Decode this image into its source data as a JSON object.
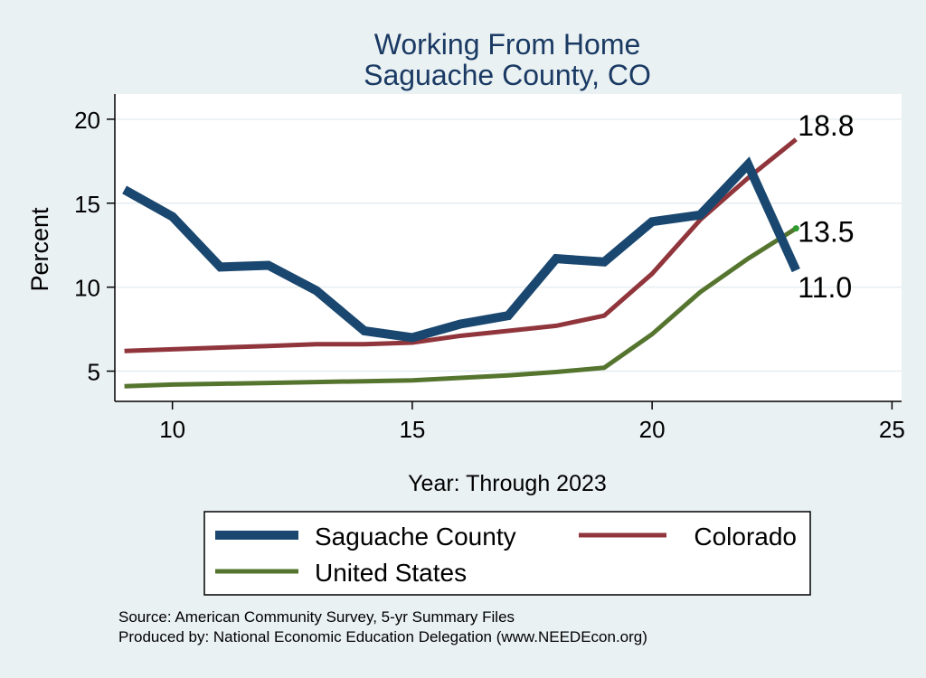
{
  "chart_data": {
    "type": "line",
    "title": "Working From Home",
    "subtitle": "Saguache County, CO",
    "xlabel": "Year: Through 2023",
    "ylabel": "Percent",
    "xlim": [
      8.8,
      25.2
    ],
    "ylim": [
      3.2,
      21.5
    ],
    "xticks": [
      10,
      15,
      20,
      25
    ],
    "yticks": [
      5,
      10,
      15,
      20
    ],
    "grid": true,
    "legend_position": "bottom",
    "x": [
      9,
      10,
      11,
      12,
      13,
      14,
      15,
      16,
      17,
      18,
      19,
      20,
      21,
      22,
      23
    ],
    "series": [
      {
        "name": "Saguache County",
        "color": "#1a476f",
        "values": [
          15.8,
          14.2,
          11.2,
          11.3,
          9.8,
          7.4,
          7.0,
          7.8,
          8.3,
          11.7,
          11.5,
          13.9,
          14.3,
          17.3,
          11.0
        ],
        "end_label": "11.0"
      },
      {
        "name": "Colorado",
        "color": "#90353b",
        "values": [
          6.2,
          6.3,
          6.4,
          6.5,
          6.6,
          6.6,
          6.7,
          7.1,
          7.4,
          7.7,
          8.3,
          10.8,
          14.0,
          16.5,
          18.8
        ],
        "end_label": "18.8"
      },
      {
        "name": "United States",
        "color": "#55752f",
        "values": [
          4.1,
          4.2,
          4.25,
          4.3,
          4.35,
          4.4,
          4.45,
          4.6,
          4.75,
          4.95,
          5.2,
          7.2,
          9.7,
          11.7,
          13.5
        ],
        "end_label": "13.5"
      }
    ]
  },
  "notes": {
    "source": "Source: American Community Survey, 5-yr Summary Files",
    "producer": "Produced by: National Economic Education Delegation (www.NEEDEcon.org)"
  }
}
